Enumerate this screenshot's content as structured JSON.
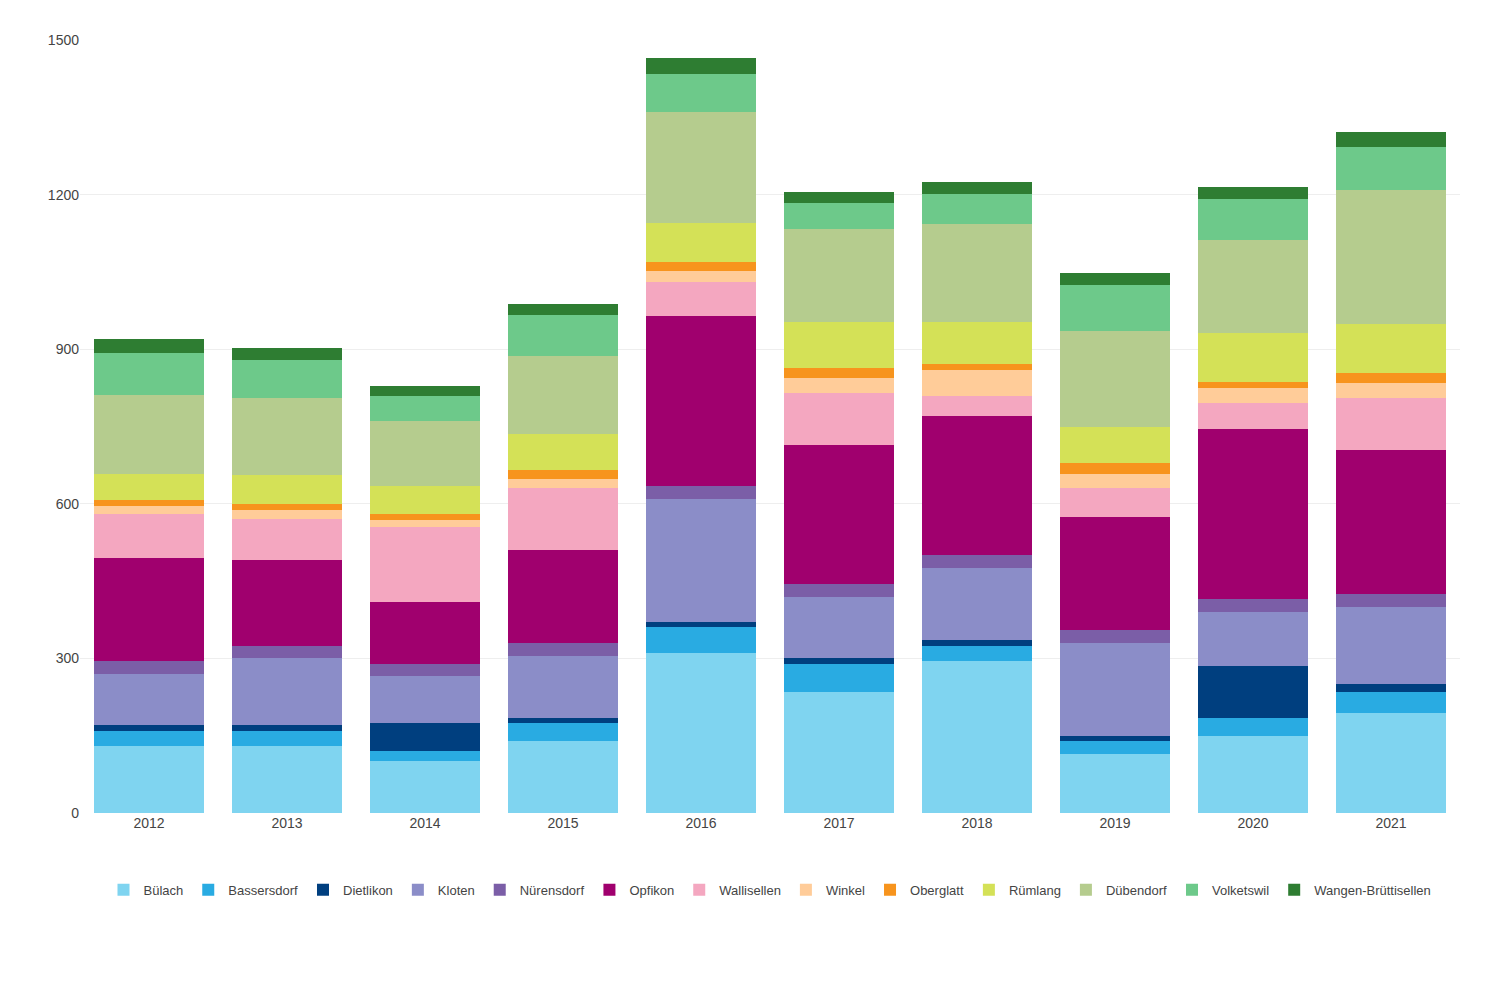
{
  "chart_data": {
    "type": "bar",
    "stacked": true,
    "grid": true,
    "legend": "bottom",
    "categories": [
      "2012",
      "2013",
      "2014",
      "2015",
      "2016",
      "2017",
      "2018",
      "2019",
      "2020",
      "2021"
    ],
    "series": [
      {
        "name": "Bülach",
        "color": "#7FD4F0",
        "values": [
          130,
          130,
          100,
          140,
          310,
          235,
          295,
          115,
          150,
          195
        ]
      },
      {
        "name": "Bassersdorf",
        "color": "#29ABE2",
        "values": [
          30,
          30,
          20,
          35,
          50,
          55,
          30,
          25,
          35,
          40
        ]
      },
      {
        "name": "Dietlikon",
        "color": "#003F7F",
        "values": [
          10,
          10,
          55,
          10,
          10,
          10,
          10,
          10,
          100,
          15
        ]
      },
      {
        "name": "Kloten",
        "color": "#8B8DC8",
        "values": [
          100,
          130,
          90,
          120,
          240,
          120,
          140,
          180,
          105,
          150
        ]
      },
      {
        "name": "Nürensdorf",
        "color": "#7B5EA7",
        "values": [
          25,
          25,
          25,
          25,
          25,
          25,
          25,
          25,
          25,
          25
        ]
      },
      {
        "name": "Opfikon",
        "color": "#A0006E",
        "values": [
          200,
          165,
          120,
          180,
          330,
          270,
          270,
          220,
          330,
          280
        ]
      },
      {
        "name": "Wallisellen",
        "color": "#F4A7C0",
        "values": [
          85,
          80,
          145,
          120,
          65,
          100,
          40,
          55,
          50,
          100
        ]
      },
      {
        "name": "Winkel",
        "color": "#FFCC99",
        "values": [
          15,
          18,
          13,
          18,
          22,
          30,
          50,
          28,
          30,
          30
        ]
      },
      {
        "name": "Oberglatt",
        "color": "#F7941D",
        "values": [
          12,
          12,
          12,
          18,
          18,
          18,
          12,
          22,
          12,
          18
        ]
      },
      {
        "name": "Rümlang",
        "color": "#D4E157",
        "values": [
          50,
          55,
          55,
          70,
          75,
          90,
          80,
          70,
          95,
          95
        ]
      },
      {
        "name": "Dübendorf",
        "color": "#B5CC8E",
        "values": [
          155,
          150,
          125,
          150,
          215,
          180,
          190,
          185,
          180,
          260
        ]
      },
      {
        "name": "Volketswil",
        "color": "#6DC98A",
        "values": [
          80,
          75,
          50,
          80,
          75,
          50,
          60,
          90,
          80,
          85
        ]
      },
      {
        "name": "Wangen-Brüttisellen",
        "color": "#2E7D32",
        "values": [
          28,
          22,
          18,
          22,
          30,
          22,
          22,
          22,
          22,
          28
        ]
      }
    ],
    "ylim": [
      0,
      1500
    ],
    "yticks": [
      0,
      300,
      600,
      900,
      1200,
      1500
    ]
  }
}
